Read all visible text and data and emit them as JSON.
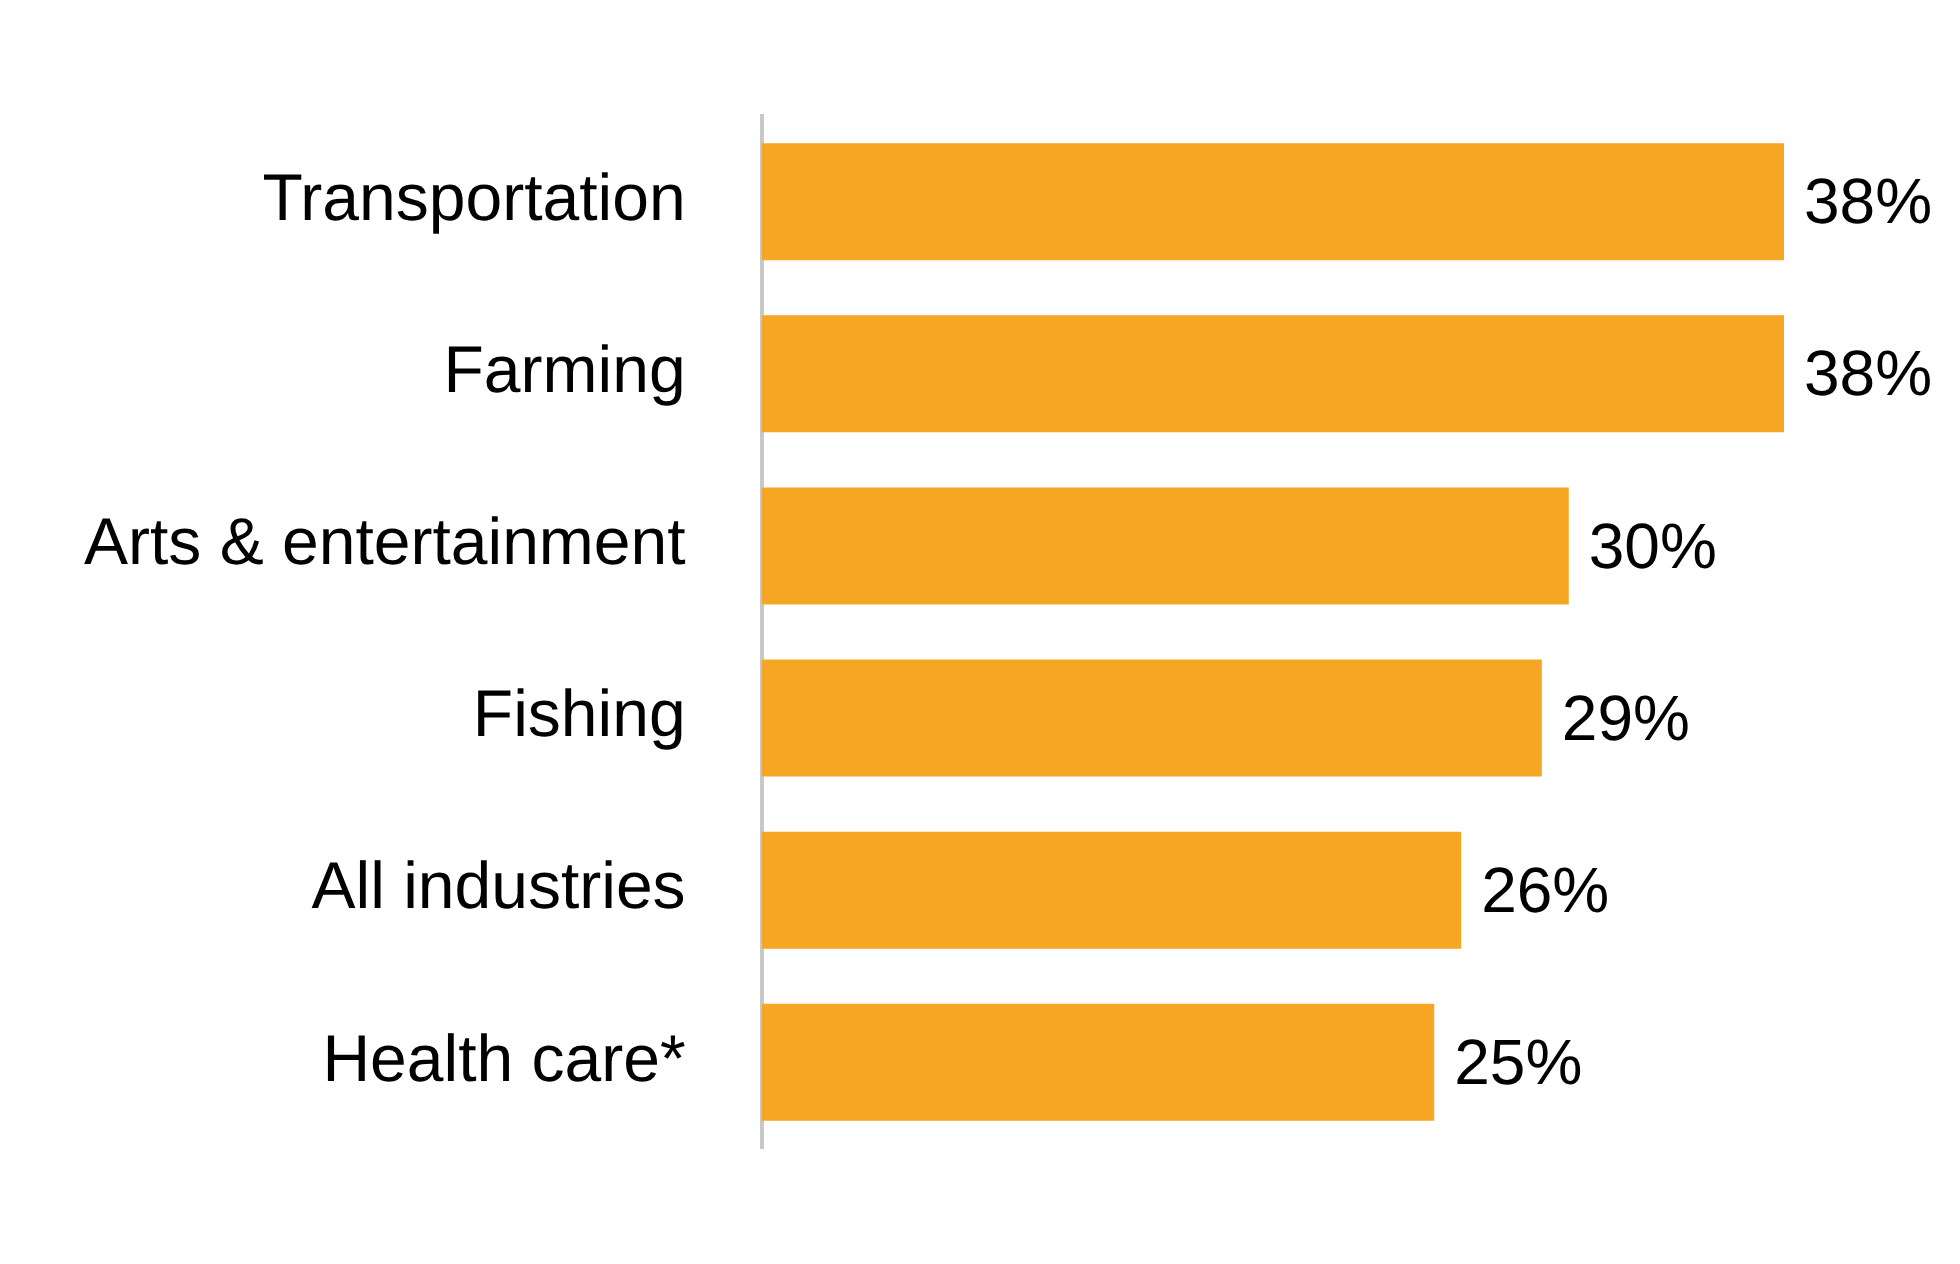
{
  "chart_data": {
    "type": "bar",
    "orientation": "horizontal",
    "categories": [
      "Transportation",
      "Farming",
      "Arts & entertainment",
      "Fishing",
      "All industries",
      "Health care*"
    ],
    "values": [
      38,
      38,
      30,
      29,
      26,
      25
    ],
    "value_labels": [
      "38%",
      "38%",
      "30%",
      "29%",
      "26%",
      "25%"
    ],
    "color": "#f5a623",
    "grid": false,
    "legend": false,
    "tick_labels": "y"
  }
}
